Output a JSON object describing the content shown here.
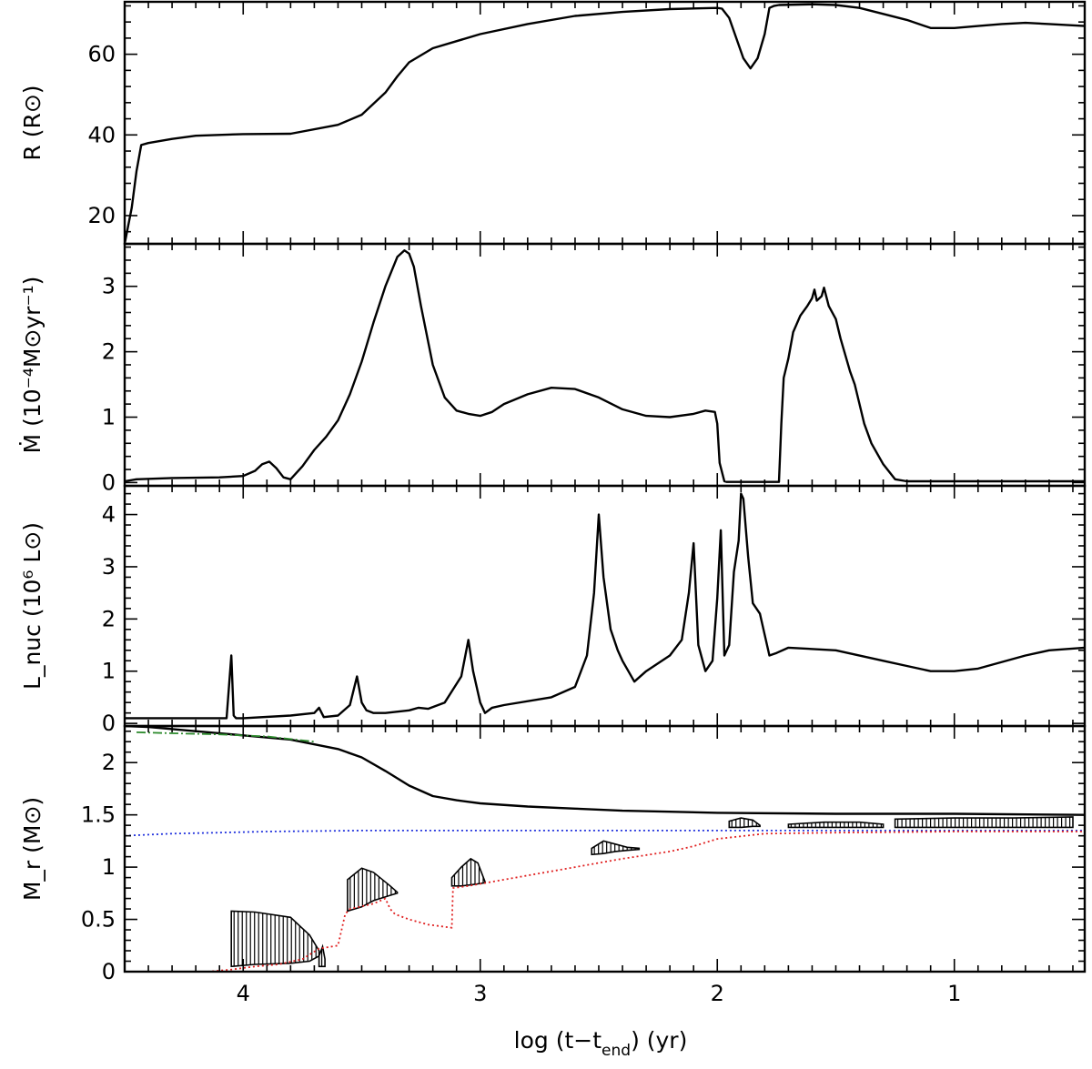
{
  "figure": {
    "xlabel": "log (t−t",
    "xlabel_sub": "end",
    "xlabel_tail": ") (yr)"
  },
  "chart_data": [
    {
      "type": "line",
      "panel": "radius",
      "ylabel": "R (R⊙)",
      "xlim": [
        4.5,
        0.45
      ],
      "ylim": [
        13,
        73
      ],
      "yticks": [
        20,
        40,
        60
      ],
      "series": [
        {
          "name": "R",
          "x": [
            4.5,
            4.47,
            4.45,
            4.43,
            4.4,
            4.3,
            4.2,
            4.0,
            3.8,
            3.6,
            3.5,
            3.4,
            3.35,
            3.3,
            3.2,
            3.0,
            2.8,
            2.6,
            2.4,
            2.2,
            2.0,
            1.98,
            1.95,
            1.92,
            1.89,
            1.86,
            1.83,
            1.8,
            1.78,
            1.76,
            1.74,
            1.6,
            1.5,
            1.4,
            1.3,
            1.2,
            1.1,
            1.0,
            0.9,
            0.8,
            0.7,
            0.6,
            0.45
          ],
          "values": [
            13,
            22,
            31,
            37.5,
            38,
            39,
            39.8,
            40.2,
            40.3,
            42.5,
            45,
            50.5,
            54.5,
            58,
            61.5,
            65,
            67.5,
            69.5,
            70.5,
            71.2,
            71.5,
            71.3,
            69,
            64,
            59,
            56.5,
            59,
            65,
            71.5,
            72,
            72.2,
            72.4,
            72.2,
            71.5,
            70,
            68.5,
            66.5,
            66.5,
            67,
            67.5,
            67.8,
            67.5,
            67
          ]
        }
      ]
    },
    {
      "type": "line",
      "panel": "mass-loss-rate",
      "ylabel": "Ṁ (10⁻⁴M⊙yr⁻¹)",
      "xlim": [
        4.5,
        0.45
      ],
      "ylim": [
        -0.05,
        3.65
      ],
      "yticks": [
        0,
        1,
        2,
        3
      ],
      "series": [
        {
          "name": "Mdot",
          "x": [
            4.5,
            4.45,
            4.3,
            4.1,
            4.0,
            3.95,
            3.92,
            3.89,
            3.86,
            3.83,
            3.8,
            3.75,
            3.7,
            3.65,
            3.6,
            3.55,
            3.5,
            3.45,
            3.4,
            3.35,
            3.32,
            3.3,
            3.28,
            3.25,
            3.2,
            3.15,
            3.1,
            3.05,
            3.0,
            2.95,
            2.9,
            2.8,
            2.7,
            2.6,
            2.5,
            2.4,
            2.3,
            2.2,
            2.1,
            2.05,
            2.01,
            2.0,
            1.99,
            1.97,
            1.96,
            1.9,
            1.8,
            1.74,
            1.73,
            1.72,
            1.7,
            1.68,
            1.65,
            1.62,
            1.6,
            1.59,
            1.58,
            1.56,
            1.55,
            1.53,
            1.5,
            1.48,
            1.46,
            1.44,
            1.42,
            1.4,
            1.38,
            1.35,
            1.3,
            1.25,
            1.2,
            0.45
          ],
          "values": [
            0.02,
            0.05,
            0.07,
            0.08,
            0.1,
            0.18,
            0.28,
            0.32,
            0.22,
            0.08,
            0.05,
            0.25,
            0.5,
            0.7,
            0.95,
            1.35,
            1.85,
            2.45,
            3.0,
            3.45,
            3.55,
            3.5,
            3.3,
            2.7,
            1.8,
            1.3,
            1.1,
            1.05,
            1.02,
            1.08,
            1.2,
            1.35,
            1.45,
            1.43,
            1.3,
            1.12,
            1.02,
            1.0,
            1.05,
            1.1,
            1.08,
            0.9,
            0.3,
            0.02,
            0.01,
            0.01,
            0.01,
            0.01,
            0.9,
            1.6,
            1.9,
            2.3,
            2.55,
            2.7,
            2.82,
            2.95,
            2.78,
            2.85,
            2.98,
            2.7,
            2.5,
            2.2,
            1.95,
            1.7,
            1.5,
            1.2,
            0.9,
            0.6,
            0.28,
            0.05,
            0.02,
            0.02
          ]
        }
      ]
    },
    {
      "type": "line",
      "panel": "nuclear-luminosity",
      "ylabel": "L_nuc (10⁶ L⊙)",
      "xlim": [
        4.5,
        0.45
      ],
      "ylim": [
        -0.05,
        4.55
      ],
      "yticks": [
        0,
        1,
        2,
        3,
        4
      ],
      "series": [
        {
          "name": "Lnuc",
          "x": [
            4.5,
            4.2,
            4.07,
            4.05,
            4.04,
            4.03,
            4.0,
            3.8,
            3.7,
            3.68,
            3.66,
            3.6,
            3.55,
            3.52,
            3.5,
            3.48,
            3.45,
            3.4,
            3.3,
            3.26,
            3.22,
            3.15,
            3.08,
            3.05,
            3.03,
            3.0,
            2.98,
            2.95,
            2.9,
            2.7,
            2.6,
            2.55,
            2.52,
            2.5,
            2.48,
            2.45,
            2.42,
            2.4,
            2.35,
            2.3,
            2.2,
            2.15,
            2.12,
            2.1,
            2.08,
            2.05,
            2.02,
            2.0,
            1.985,
            1.97,
            1.95,
            1.93,
            1.91,
            1.9,
            1.89,
            1.87,
            1.85,
            1.82,
            1.8,
            1.78,
            1.75,
            1.7,
            1.5,
            1.3,
            1.2,
            1.1,
            1.0,
            0.9,
            0.7,
            0.6,
            0.45
          ],
          "values": [
            0.1,
            0.1,
            0.1,
            1.3,
            0.15,
            0.1,
            0.1,
            0.15,
            0.2,
            0.3,
            0.12,
            0.15,
            0.35,
            0.9,
            0.4,
            0.25,
            0.2,
            0.2,
            0.25,
            0.3,
            0.28,
            0.4,
            0.9,
            1.6,
            1.0,
            0.4,
            0.2,
            0.3,
            0.35,
            0.5,
            0.7,
            1.3,
            2.5,
            4.0,
            2.8,
            1.8,
            1.4,
            1.2,
            0.8,
            1.0,
            1.3,
            1.6,
            2.5,
            3.45,
            1.5,
            1.0,
            1.2,
            2.4,
            3.7,
            1.3,
            1.5,
            2.9,
            3.5,
            4.4,
            4.3,
            3.2,
            2.3,
            2.1,
            1.7,
            1.3,
            1.35,
            1.45,
            1.4,
            1.2,
            1.1,
            1.0,
            1.0,
            1.05,
            1.3,
            1.4,
            1.45
          ]
        }
      ]
    },
    {
      "type": "line",
      "panel": "kippenhahn",
      "ylabel": "M_r (M⊙)",
      "xlim": [
        4.5,
        0.45
      ],
      "ylim": [
        0,
        2.35
      ],
      "yticks": [
        0,
        0.5,
        1,
        1.5,
        2
      ],
      "series": [
        {
          "name": "total-mass",
          "x": [
            4.5,
            4.4,
            4.2,
            4.0,
            3.8,
            3.6,
            3.5,
            3.4,
            3.3,
            3.2,
            3.1,
            3.0,
            2.8,
            2.6,
            2.4,
            2.2,
            2.0,
            1.5,
            1.0,
            0.45
          ],
          "values": [
            2.35,
            2.34,
            2.3,
            2.26,
            2.22,
            2.13,
            2.05,
            1.92,
            1.78,
            1.68,
            1.64,
            1.61,
            1.58,
            1.56,
            1.54,
            1.53,
            1.52,
            1.51,
            1.51,
            1.5
          ]
        },
        {
          "name": "green-dashed",
          "x": [
            4.45,
            4.3,
            4.1,
            3.9,
            3.7
          ],
          "values": [
            2.29,
            2.28,
            2.27,
            2.25,
            2.2
          ]
        },
        {
          "name": "blue-dotted",
          "x": [
            4.5,
            4.3,
            4.1,
            3.9,
            3.5,
            3.0,
            2.5,
            2.0,
            1.5,
            1.0,
            0.45
          ],
          "values": [
            1.3,
            1.32,
            1.33,
            1.34,
            1.35,
            1.35,
            1.35,
            1.35,
            1.35,
            1.35,
            1.35
          ]
        },
        {
          "name": "red-dotted",
          "x": [
            4.15,
            4.05,
            3.95,
            3.85,
            3.75,
            3.68,
            3.6,
            3.58,
            3.57,
            3.55,
            3.45,
            3.4,
            3.38,
            3.36,
            3.3,
            3.22,
            3.12,
            3.115,
            3.05,
            2.95,
            2.8,
            2.6,
            2.4,
            2.2,
            2.1,
            2.0,
            1.8,
            1.5,
            1.0,
            0.45
          ],
          "values": [
            0.0,
            0.02,
            0.05,
            0.07,
            0.12,
            0.22,
            0.25,
            0.45,
            0.55,
            0.6,
            0.65,
            0.7,
            0.6,
            0.55,
            0.5,
            0.45,
            0.42,
            0.8,
            0.82,
            0.86,
            0.92,
            1.0,
            1.08,
            1.15,
            1.2,
            1.27,
            1.32,
            1.33,
            1.34,
            1.34
          ]
        }
      ],
      "convective_zones": [
        {
          "x": [
            4.05,
            3.95,
            3.8,
            3.72,
            3.68
          ],
          "bottom": [
            0.05,
            0.07,
            0.08,
            0.1,
            0.15
          ],
          "top": [
            0.58,
            0.57,
            0.52,
            0.35,
            0.2
          ]
        },
        {
          "x": [
            3.68,
            3.665,
            3.655
          ],
          "bottom": [
            0.05,
            0.05,
            0.05
          ],
          "top": [
            0.15,
            0.24,
            0.12
          ]
        },
        {
          "x": [
            3.56,
            3.5,
            3.45,
            3.38,
            3.35
          ],
          "bottom": [
            0.58,
            0.62,
            0.68,
            0.73,
            0.75
          ],
          "top": [
            0.88,
            0.99,
            0.95,
            0.82,
            0.76
          ]
        },
        {
          "x": [
            3.12,
            3.08,
            3.04,
            3.01,
            2.98
          ],
          "bottom": [
            0.82,
            0.82,
            0.83,
            0.84,
            0.85
          ],
          "top": [
            0.9,
            1.0,
            1.08,
            1.04,
            0.86
          ]
        },
        {
          "x": [
            2.53,
            2.48,
            2.43,
            2.38,
            2.33
          ],
          "bottom": [
            1.12,
            1.13,
            1.15,
            1.16,
            1.17
          ],
          "top": [
            1.18,
            1.25,
            1.22,
            1.19,
            1.18
          ]
        },
        {
          "x": [
            1.95,
            1.9,
            1.85,
            1.82
          ],
          "bottom": [
            1.38,
            1.38,
            1.39,
            1.39
          ],
          "top": [
            1.44,
            1.47,
            1.45,
            1.4
          ]
        },
        {
          "x": [
            1.7,
            1.55,
            1.4,
            1.3
          ],
          "bottom": [
            1.38,
            1.38,
            1.38,
            1.38
          ],
          "top": [
            1.41,
            1.43,
            1.43,
            1.41
          ]
        },
        {
          "x": [
            1.25,
            1.0,
            0.75,
            0.5
          ],
          "bottom": [
            1.38,
            1.38,
            1.38,
            1.38
          ],
          "top": [
            1.46,
            1.47,
            1.47,
            1.48
          ]
        }
      ]
    }
  ],
  "x_ticks": [
    4,
    3,
    2,
    1
  ]
}
